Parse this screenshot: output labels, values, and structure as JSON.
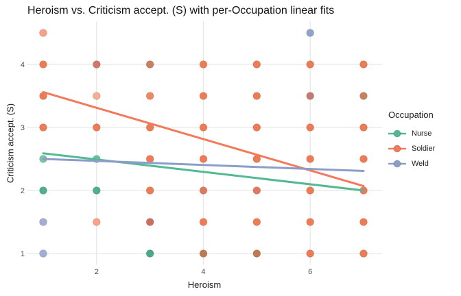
{
  "chart_data": {
    "type": "scatter",
    "title": "Heroism vs. Criticism accept. (S) with per-Occupation linear fits",
    "xlabel": "Heroism",
    "ylabel": "Criticism accept. (S)",
    "x_ticks": [
      2,
      4,
      6
    ],
    "y_ticks": [
      1,
      2,
      3,
      4
    ],
    "xlim": [
      0.7,
      7.3
    ],
    "ylim": [
      0.8,
      4.7
    ],
    "grid": "major-only",
    "background": "#ffffff",
    "gridline_color": "#e7e7e7",
    "legend": {
      "title": "Occupation",
      "position": "right",
      "entries": [
        {
          "name": "Nurse",
          "color": "#52B993"
        },
        {
          "name": "Soldier",
          "color": "#F4795B"
        },
        {
          "name": "Weld",
          "color": "#8B9DC9"
        }
      ]
    },
    "points": [
      {
        "x": 1,
        "y": 4.5,
        "color": "#F9A287"
      },
      {
        "x": 6,
        "y": 4.5,
        "color": "#93A2CD"
      },
      {
        "x": 1,
        "y": 4,
        "color": "#EE7B54"
      },
      {
        "x": 2,
        "y": 4,
        "color": "#D3756A"
      },
      {
        "x": 3,
        "y": 4,
        "color": "#CB7F62"
      },
      {
        "x": 4,
        "y": 4,
        "color": "#EE7B54"
      },
      {
        "x": 5,
        "y": 4,
        "color": "#EE7B54"
      },
      {
        "x": 6,
        "y": 4,
        "color": "#EE7B54"
      },
      {
        "x": 7,
        "y": 4,
        "color": "#EE7B54"
      },
      {
        "x": 1,
        "y": 3.5,
        "color": "#EE7B54"
      },
      {
        "x": 2,
        "y": 3.5,
        "color": "#F8AC92"
      },
      {
        "x": 3,
        "y": 3.5,
        "color": "#F08760"
      },
      {
        "x": 4,
        "y": 3.5,
        "color": "#EE7B54"
      },
      {
        "x": 5,
        "y": 3.5,
        "color": "#EE7B54"
      },
      {
        "x": 6,
        "y": 3.5,
        "color": "#C57973"
      },
      {
        "x": 7,
        "y": 3.5,
        "color": "#C8815F"
      },
      {
        "x": 1,
        "y": 3,
        "color": "#EE7B54"
      },
      {
        "x": 2,
        "y": 3,
        "color": "#EE7B54"
      },
      {
        "x": 3,
        "y": 3,
        "color": "#EE7B54"
      },
      {
        "x": 4,
        "y": 3,
        "color": "#EE7B54"
      },
      {
        "x": 5,
        "y": 3,
        "color": "#EE7B54"
      },
      {
        "x": 6,
        "y": 3,
        "color": "#EE7B54"
      },
      {
        "x": 7,
        "y": 3,
        "color": "#EE7B54"
      },
      {
        "x": 1,
        "y": 2.5,
        "color": "#7CC4A8"
      },
      {
        "x": 2,
        "y": 2.5,
        "color": "#70BEA1"
      },
      {
        "x": 3,
        "y": 2.5,
        "color": "#EE7B54"
      },
      {
        "x": 4,
        "y": 2.5,
        "color": "#EE7B54"
      },
      {
        "x": 5,
        "y": 2.5,
        "color": "#EE7B54"
      },
      {
        "x": 6,
        "y": 2.5,
        "color": "#EE7B54"
      },
      {
        "x": 7,
        "y": 2.5,
        "color": "#EE7B54"
      },
      {
        "x": 1,
        "y": 2,
        "color": "#4FAF8F"
      },
      {
        "x": 2,
        "y": 2,
        "color": "#4FAF8F"
      },
      {
        "x": 3,
        "y": 2,
        "color": "#EE7B54"
      },
      {
        "x": 4,
        "y": 2,
        "color": "#E07A5F"
      },
      {
        "x": 5,
        "y": 2,
        "color": "#E07A5F"
      },
      {
        "x": 6,
        "y": 2,
        "color": "#EE7B54"
      },
      {
        "x": 7,
        "y": 2,
        "color": "#EE7B54"
      },
      {
        "x": 1,
        "y": 1.5,
        "color": "#A3AED3"
      },
      {
        "x": 2,
        "y": 1.5,
        "color": "#F9A287"
      },
      {
        "x": 3,
        "y": 1.5,
        "color": "#CC6E5E"
      },
      {
        "x": 4,
        "y": 1.5,
        "color": "#EE7B54"
      },
      {
        "x": 5,
        "y": 1.5,
        "color": "#EE7B54"
      },
      {
        "x": 6,
        "y": 1.5,
        "color": "#EE7B54"
      },
      {
        "x": 7,
        "y": 1.5,
        "color": "#EE7B54"
      },
      {
        "x": 1,
        "y": 1,
        "color": "#A3AED3"
      },
      {
        "x": 3,
        "y": 1,
        "color": "#4BA98B"
      },
      {
        "x": 4,
        "y": 1,
        "color": "#BE7B52"
      },
      {
        "x": 5,
        "y": 1,
        "color": "#BE7B52"
      },
      {
        "x": 6,
        "y": 1,
        "color": "#EE7B54"
      },
      {
        "x": 7,
        "y": 1,
        "color": "#EE7B54"
      }
    ],
    "fit_lines": [
      {
        "name": "Nurse",
        "color": "#52B993",
        "x": [
          1,
          7
        ],
        "y": [
          2.59,
          2.0
        ]
      },
      {
        "name": "Soldier",
        "color": "#F4795B",
        "x": [
          1,
          7
        ],
        "y": [
          3.56,
          2.07
        ]
      },
      {
        "name": "Weld",
        "color": "#8B9DC9",
        "x": [
          1,
          7
        ],
        "y": [
          2.5,
          2.31
        ]
      }
    ]
  }
}
